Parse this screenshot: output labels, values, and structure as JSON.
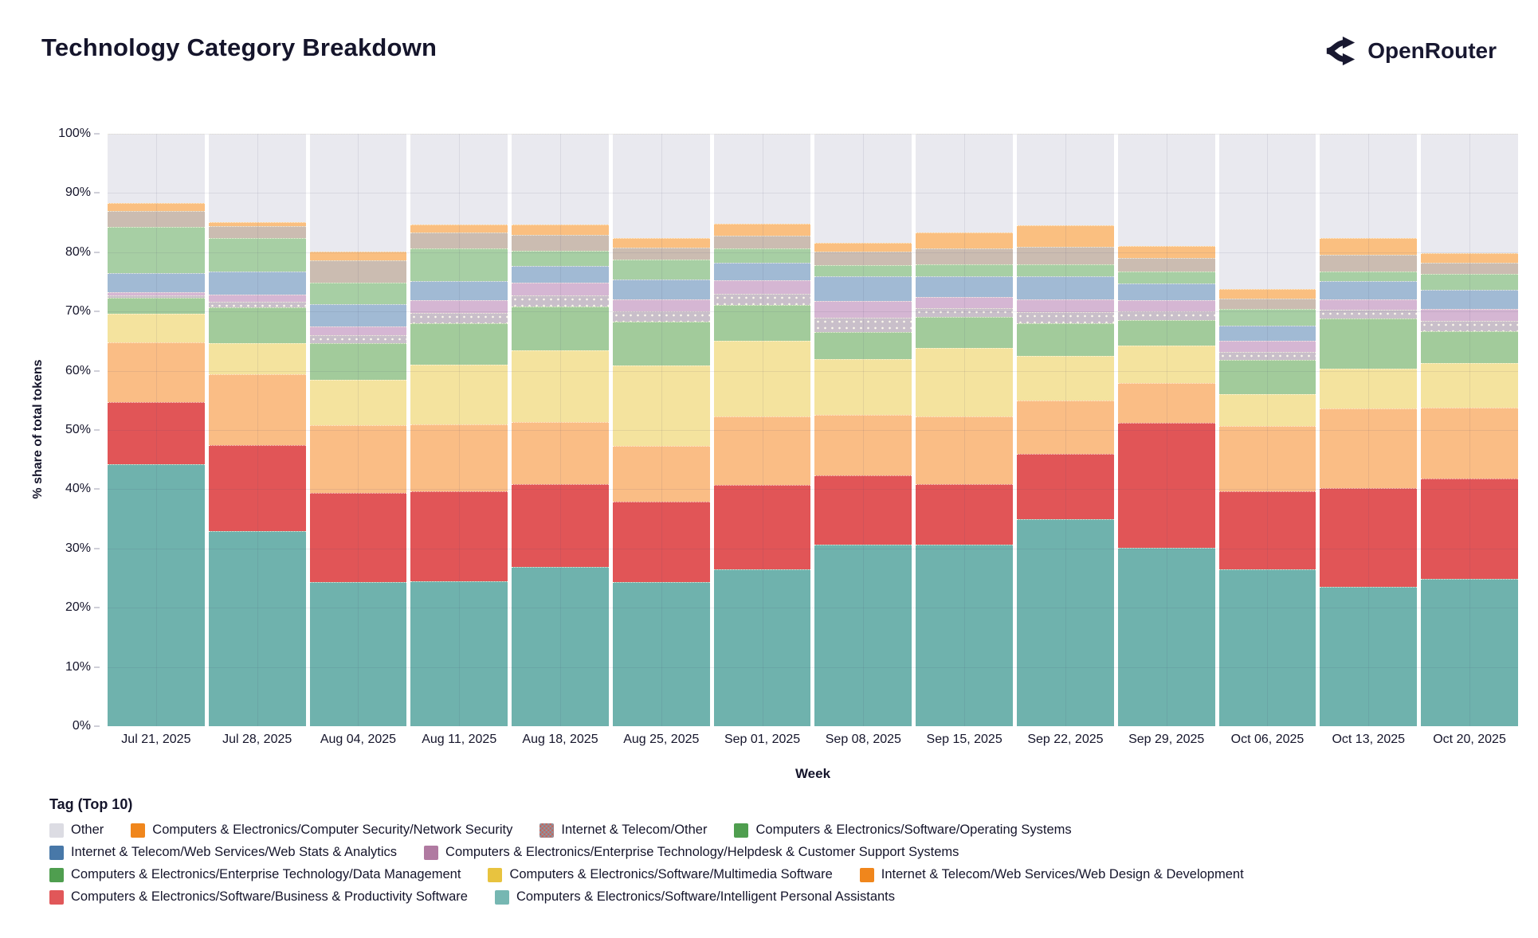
{
  "header": {
    "title": "Technology Category Breakdown",
    "brand": "OpenRouter"
  },
  "legend": {
    "title": "Tag (Top 10)",
    "rows": [
      [
        {
          "label": "Other",
          "color": "#dcdce3",
          "pattern": false
        },
        {
          "label": "Computers & Electronics/Computer Security/Network Security",
          "color": "#f0861c",
          "pattern": false
        },
        {
          "label": "Internet & Telecom/Other",
          "color": "#a98a80",
          "pattern": true
        },
        {
          "label": "Computers & Electronics/Software/Operating Systems",
          "color": "#4f9e4f",
          "pattern": false
        }
      ],
      [
        {
          "label": "Internet & Telecom/Web Services/Web Stats & Analytics",
          "color": "#4878a8",
          "pattern": false
        },
        {
          "label": "Computers & Electronics/Enterprise Technology/Helpdesk & Customer Support Systems",
          "color": "#b07aa1",
          "pattern": false
        }
      ],
      [
        {
          "label": "Computers & Electronics/Enterprise Technology/Data Management",
          "color": "#4f9e4f",
          "pattern": false
        },
        {
          "label": "Computers & Electronics/Software/Multimedia Software",
          "color": "#e8c33f",
          "pattern": false
        },
        {
          "label": "Internet & Telecom/Web Services/Web Design & Development",
          "color": "#f0861c",
          "pattern": false
        }
      ],
      [
        {
          "label": "Computers & Electronics/Software/Business & Productivity Software",
          "color": "#e15759",
          "pattern": false
        },
        {
          "label": "Computers & Electronics/Software/Intelligent Personal Assistants",
          "color": "#76b7b2",
          "pattern": false
        }
      ]
    ]
  },
  "chart_data": {
    "type": "bar",
    "subtype": "stacked-100-percent",
    "title": "Technology Category Breakdown",
    "xlabel": "Week",
    "ylabel": "% share of total tokens",
    "ylim": [
      0,
      100
    ],
    "ytick_step": 10,
    "grid": true,
    "legend_position": "bottom",
    "categories": [
      "Jul 21, 2025",
      "Jul 28, 2025",
      "Aug 04, 2025",
      "Aug 11, 2025",
      "Aug 18, 2025",
      "Aug 25, 2025",
      "Sep 01, 2025",
      "Sep 08, 2025",
      "Sep 15, 2025",
      "Sep 22, 2025",
      "Sep 29, 2025",
      "Oct 06, 2025",
      "Oct 13, 2025",
      "Oct 20, 2025"
    ],
    "series": [
      {
        "name": "Computers & Electronics/Software/Intelligent Personal Assistants",
        "color": "#6fb2ad",
        "pattern": null,
        "values": [
          44.2,
          32.9,
          24.3,
          24.5,
          26.9,
          24.3,
          26.5,
          30.7,
          30.7,
          35.0,
          30.1,
          26.5,
          23.5,
          24.9
        ]
      },
      {
        "name": "Computers & Electronics/Software/Business & Productivity Software",
        "color": "#e15557",
        "pattern": null,
        "values": [
          10.5,
          14.6,
          15.1,
          15.2,
          14.0,
          13.6,
          14.2,
          11.7,
          10.2,
          11.0,
          21.1,
          13.2,
          16.7,
          16.9
        ]
      },
      {
        "name": "Internet & Telecom/Web Services/Web Design & Development",
        "color": "#fabd85",
        "pattern": null,
        "values": [
          10.1,
          11.9,
          11.4,
          11.3,
          10.5,
          9.4,
          11.6,
          10.1,
          11.4,
          9.0,
          6.8,
          11.0,
          13.4,
          12.0
        ]
      },
      {
        "name": "Computers & Electronics/Software/Multimedia Software",
        "color": "#f4e39e",
        "pattern": null,
        "values": [
          4.8,
          5.2,
          7.7,
          10.0,
          12.0,
          13.6,
          12.8,
          9.4,
          11.6,
          7.5,
          6.2,
          5.4,
          6.7,
          7.5
        ]
      },
      {
        "name": "Computers & Electronics/Enterprise Technology/Data Management",
        "color": "#a2cb9b",
        "pattern": null,
        "values": [
          2.7,
          6.1,
          6.2,
          7.0,
          7.5,
          7.4,
          6.0,
          4.7,
          5.2,
          5.5,
          4.4,
          5.7,
          8.5,
          5.4
        ]
      },
      {
        "name": "Computers & Electronics/Enterprise Technology/Helpdesk & Customer Support Systems",
        "color": "#d5b6d3",
        "pattern": "dots-lower",
        "values": [
          1.0,
          2.2,
          2.8,
          3.9,
          4.0,
          3.8,
          4.2,
          5.2,
          3.4,
          4.1,
          3.3,
          3.2,
          3.3,
          3.7
        ]
      },
      {
        "name": "Internet & Telecom/Web Services/Web Stats & Analytics",
        "color": "#a1bad4",
        "pattern": null,
        "values": [
          3.2,
          3.8,
          3.7,
          3.2,
          2.8,
          3.3,
          3.0,
          4.2,
          3.5,
          3.9,
          2.9,
          2.6,
          3.1,
          3.2
        ]
      },
      {
        "name": "Computers & Electronics/Software/Operating Systems",
        "color": "#a7cfa4",
        "pattern": null,
        "values": [
          7.8,
          5.7,
          3.7,
          5.6,
          2.5,
          3.4,
          2.3,
          1.8,
          2.0,
          2.0,
          1.9,
          2.8,
          1.6,
          2.7
        ]
      },
      {
        "name": "Internet & Telecom/Other",
        "color": "#cbbcb1",
        "pattern": null,
        "values": [
          2.7,
          2.0,
          3.7,
          2.6,
          2.8,
          2.0,
          2.2,
          2.3,
          2.7,
          2.9,
          2.4,
          1.8,
          2.8,
          1.9
        ]
      },
      {
        "name": "Computers & Electronics/Computer Security/Network Security",
        "color": "#fabf80",
        "pattern": null,
        "values": [
          1.3,
          0.7,
          1.5,
          1.4,
          1.7,
          1.6,
          2.0,
          1.5,
          2.6,
          3.6,
          2.0,
          1.6,
          2.8,
          1.7
        ]
      },
      {
        "name": "Other",
        "color": "#e9e9ef",
        "pattern": null,
        "values": [
          11.7,
          14.9,
          19.9,
          15.3,
          15.3,
          17.6,
          15.2,
          18.4,
          16.7,
          15.5,
          18.9,
          26.2,
          17.6,
          20.1
        ]
      }
    ]
  }
}
